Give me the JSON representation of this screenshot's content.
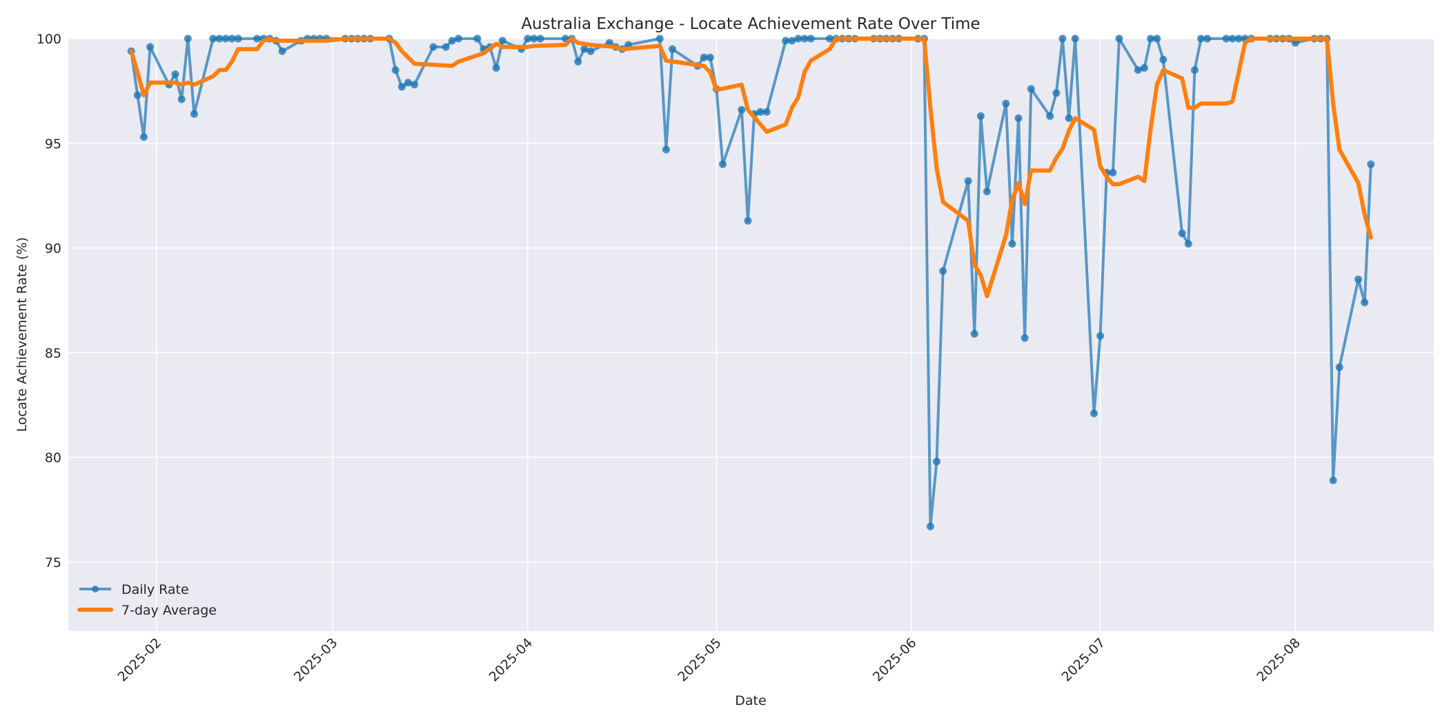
{
  "chart_data": {
    "type": "line",
    "title": "Australia Exchange - Locate Achievement Rate Over Time",
    "xlabel": "Date",
    "ylabel": "Locate Achievement Rate (%)",
    "xlim": [
      "2025-01-18",
      "2025-08-23"
    ],
    "ylim": [
      71.7,
      100
    ],
    "yticks": [
      75,
      80,
      85,
      90,
      95,
      100
    ],
    "xticks": [
      "2025-02",
      "2025-03",
      "2025-04",
      "2025-05",
      "2025-06",
      "2025-07",
      "2025-08"
    ],
    "grid": true,
    "legend_position": "lower left",
    "series": [
      {
        "name": "Daily Rate",
        "color": "#1f77b4",
        "style": "line-with-markers",
        "points": [
          [
            "2025-01-28",
            99.4
          ],
          [
            "2025-01-29",
            97.3
          ],
          [
            "2025-01-30",
            95.3
          ],
          [
            "2025-01-31",
            99.6
          ],
          [
            "2025-02-03",
            97.8
          ],
          [
            "2025-02-04",
            98.3
          ],
          [
            "2025-02-05",
            97.1
          ],
          [
            "2025-02-06",
            100.0
          ],
          [
            "2025-02-07",
            96.4
          ],
          [
            "2025-02-10",
            100.0
          ],
          [
            "2025-02-11",
            100.0
          ],
          [
            "2025-02-12",
            100.0
          ],
          [
            "2025-02-13",
            100.0
          ],
          [
            "2025-02-14",
            100.0
          ],
          [
            "2025-02-17",
            100.0
          ],
          [
            "2025-02-18",
            100.0
          ],
          [
            "2025-02-19",
            100.0
          ],
          [
            "2025-02-20",
            99.9
          ],
          [
            "2025-02-21",
            99.4
          ],
          [
            "2025-02-24",
            99.9
          ],
          [
            "2025-02-25",
            100.0
          ],
          [
            "2025-02-26",
            100.0
          ],
          [
            "2025-02-27",
            100.0
          ],
          [
            "2025-02-28",
            100.0
          ],
          [
            "2025-03-03",
            100.0
          ],
          [
            "2025-03-04",
            100.0
          ],
          [
            "2025-03-05",
            100.0
          ],
          [
            "2025-03-06",
            100.0
          ],
          [
            "2025-03-07",
            100.0
          ],
          [
            "2025-03-10",
            100.0
          ],
          [
            "2025-03-11",
            98.5
          ],
          [
            "2025-03-12",
            97.7
          ],
          [
            "2025-03-13",
            97.9
          ],
          [
            "2025-03-14",
            97.8
          ],
          [
            "2025-03-17",
            99.6
          ],
          [
            "2025-03-19",
            99.6
          ],
          [
            "2025-03-20",
            99.9
          ],
          [
            "2025-03-21",
            100.0
          ],
          [
            "2025-03-24",
            100.0
          ],
          [
            "2025-03-25",
            99.5
          ],
          [
            "2025-03-26",
            99.6
          ],
          [
            "2025-03-27",
            98.6
          ],
          [
            "2025-03-28",
            99.9
          ],
          [
            "2025-03-31",
            99.5
          ],
          [
            "2025-04-01",
            100.0
          ],
          [
            "2025-04-02",
            100.0
          ],
          [
            "2025-04-03",
            100.0
          ],
          [
            "2025-04-07",
            100.0
          ],
          [
            "2025-04-08",
            100.0
          ],
          [
            "2025-04-09",
            98.9
          ],
          [
            "2025-04-10",
            99.5
          ],
          [
            "2025-04-11",
            99.4
          ],
          [
            "2025-04-14",
            99.8
          ],
          [
            "2025-04-15",
            99.6
          ],
          [
            "2025-04-16",
            99.5
          ],
          [
            "2025-04-17",
            99.7
          ],
          [
            "2025-04-22",
            100.0
          ],
          [
            "2025-04-23",
            94.7
          ],
          [
            "2025-04-24",
            99.5
          ],
          [
            "2025-04-28",
            98.7
          ],
          [
            "2025-04-29",
            99.1
          ],
          [
            "2025-04-30",
            99.1
          ],
          [
            "2025-05-01",
            97.6
          ],
          [
            "2025-05-02",
            94.0
          ],
          [
            "2025-05-05",
            96.6
          ],
          [
            "2025-05-06",
            91.3
          ],
          [
            "2025-05-07",
            96.4
          ],
          [
            "2025-05-08",
            96.5
          ],
          [
            "2025-05-09",
            96.5
          ],
          [
            "2025-05-12",
            99.9
          ],
          [
            "2025-05-13",
            99.9
          ],
          [
            "2025-05-14",
            100.0
          ],
          [
            "2025-05-15",
            100.0
          ],
          [
            "2025-05-16",
            100.0
          ],
          [
            "2025-05-19",
            100.0
          ],
          [
            "2025-05-20",
            100.0
          ],
          [
            "2025-05-21",
            100.0
          ],
          [
            "2025-05-22",
            100.0
          ],
          [
            "2025-05-23",
            100.0
          ],
          [
            "2025-05-26",
            100.0
          ],
          [
            "2025-05-27",
            100.0
          ],
          [
            "2025-05-28",
            100.0
          ],
          [
            "2025-05-29",
            100.0
          ],
          [
            "2025-05-30",
            100.0
          ],
          [
            "2025-06-02",
            100.0
          ],
          [
            "2025-06-03",
            100.0
          ],
          [
            "2025-06-04",
            76.7
          ],
          [
            "2025-06-05",
            79.8
          ],
          [
            "2025-06-06",
            88.9
          ],
          [
            "2025-06-10",
            93.2
          ],
          [
            "2025-06-11",
            85.9
          ],
          [
            "2025-06-12",
            96.3
          ],
          [
            "2025-06-13",
            92.7
          ],
          [
            "2025-06-16",
            96.9
          ],
          [
            "2025-06-17",
            90.2
          ],
          [
            "2025-06-18",
            96.2
          ],
          [
            "2025-06-19",
            85.7
          ],
          [
            "2025-06-20",
            97.6
          ],
          [
            "2025-06-23",
            96.3
          ],
          [
            "2025-06-24",
            97.4
          ],
          [
            "2025-06-25",
            100.0
          ],
          [
            "2025-06-26",
            96.2
          ],
          [
            "2025-06-27",
            100.0
          ],
          [
            "2025-06-30",
            82.1
          ],
          [
            "2025-07-01",
            85.8
          ],
          [
            "2025-07-02",
            93.6
          ],
          [
            "2025-07-03",
            93.6
          ],
          [
            "2025-07-04",
            100.0
          ],
          [
            "2025-07-07",
            98.5
          ],
          [
            "2025-07-08",
            98.6
          ],
          [
            "2025-07-09",
            100.0
          ],
          [
            "2025-07-10",
            100.0
          ],
          [
            "2025-07-11",
            99.0
          ],
          [
            "2025-07-14",
            90.7
          ],
          [
            "2025-07-15",
            90.2
          ],
          [
            "2025-07-16",
            98.5
          ],
          [
            "2025-07-17",
            100.0
          ],
          [
            "2025-07-18",
            100.0
          ],
          [
            "2025-07-21",
            100.0
          ],
          [
            "2025-07-22",
            100.0
          ],
          [
            "2025-07-23",
            100.0
          ],
          [
            "2025-07-24",
            100.0
          ],
          [
            "2025-07-25",
            100.0
          ],
          [
            "2025-07-28",
            100.0
          ],
          [
            "2025-07-29",
            100.0
          ],
          [
            "2025-07-30",
            100.0
          ],
          [
            "2025-07-31",
            100.0
          ],
          [
            "2025-08-01",
            99.8
          ],
          [
            "2025-08-04",
            100.0
          ],
          [
            "2025-08-05",
            100.0
          ],
          [
            "2025-08-06",
            100.0
          ],
          [
            "2025-08-07",
            78.9
          ],
          [
            "2025-08-08",
            84.3
          ],
          [
            "2025-08-11",
            88.5
          ],
          [
            "2025-08-12",
            87.4
          ],
          [
            "2025-08-13",
            94.0
          ]
        ]
      },
      {
        "name": "7-day Average",
        "color": "#ff7f0e",
        "style": "thick-line",
        "points": [
          [
            "2025-01-28",
            99.4
          ],
          [
            "2025-01-29",
            98.4
          ],
          [
            "2025-01-30",
            97.3
          ],
          [
            "2025-01-31",
            97.9
          ],
          [
            "2025-02-03",
            97.9
          ],
          [
            "2025-02-04",
            97.9
          ],
          [
            "2025-02-05",
            97.8
          ],
          [
            "2025-02-06",
            97.9
          ],
          [
            "2025-02-07",
            97.8
          ],
          [
            "2025-02-10",
            98.2
          ],
          [
            "2025-02-11",
            98.5
          ],
          [
            "2025-02-12",
            98.5
          ],
          [
            "2025-02-13",
            98.9
          ],
          [
            "2025-02-14",
            99.5
          ],
          [
            "2025-02-17",
            99.5
          ],
          [
            "2025-02-18",
            99.9
          ],
          [
            "2025-02-19",
            100.0
          ],
          [
            "2025-02-20",
            99.9
          ],
          [
            "2025-02-21",
            99.9
          ],
          [
            "2025-02-24",
            99.9
          ],
          [
            "2025-02-25",
            99.9
          ],
          [
            "2025-02-28",
            99.9
          ],
          [
            "2025-03-03",
            100.0
          ],
          [
            "2025-03-07",
            100.0
          ],
          [
            "2025-03-10",
            100.0
          ],
          [
            "2025-03-11",
            99.8
          ],
          [
            "2025-03-12",
            99.4
          ],
          [
            "2025-03-14",
            98.8
          ],
          [
            "2025-03-20",
            98.7
          ],
          [
            "2025-03-21",
            98.9
          ],
          [
            "2025-03-25",
            99.3
          ],
          [
            "2025-03-27",
            99.75
          ],
          [
            "2025-03-28",
            99.6
          ],
          [
            "2025-04-01",
            99.6
          ],
          [
            "2025-04-02",
            99.65
          ],
          [
            "2025-04-07",
            99.7
          ],
          [
            "2025-04-08",
            100.0
          ],
          [
            "2025-04-09",
            99.8
          ],
          [
            "2025-04-11",
            99.7
          ],
          [
            "2025-04-15",
            99.6
          ],
          [
            "2025-04-16",
            99.5
          ],
          [
            "2025-04-22",
            99.65
          ],
          [
            "2025-04-23",
            98.95
          ],
          [
            "2025-04-29",
            98.7
          ],
          [
            "2025-04-30",
            98.4
          ],
          [
            "2025-05-01",
            97.55
          ],
          [
            "2025-05-05",
            97.8
          ],
          [
            "2025-05-06",
            96.6
          ],
          [
            "2025-05-09",
            95.55
          ],
          [
            "2025-05-12",
            95.9
          ],
          [
            "2025-05-13",
            96.7
          ],
          [
            "2025-05-14",
            97.2
          ],
          [
            "2025-05-15",
            98.4
          ],
          [
            "2025-05-16",
            98.95
          ],
          [
            "2025-05-19",
            99.5
          ],
          [
            "2025-05-20",
            100.0
          ],
          [
            "2025-06-03",
            100.0
          ],
          [
            "2025-06-04",
            96.7
          ],
          [
            "2025-06-05",
            93.8
          ],
          [
            "2025-06-06",
            92.2
          ],
          [
            "2025-06-10",
            91.3
          ],
          [
            "2025-06-11",
            89.2
          ],
          [
            "2025-06-12",
            88.7
          ],
          [
            "2025-06-13",
            87.7
          ],
          [
            "2025-06-16",
            90.6
          ],
          [
            "2025-06-17",
            92.3
          ],
          [
            "2025-06-18",
            93.1
          ],
          [
            "2025-06-19",
            92.1
          ],
          [
            "2025-06-20",
            93.7
          ],
          [
            "2025-06-23",
            93.7
          ],
          [
            "2025-06-24",
            94.3
          ],
          [
            "2025-06-25",
            94.75
          ],
          [
            "2025-06-26",
            95.6
          ],
          [
            "2025-06-27",
            96.2
          ],
          [
            "2025-06-30",
            95.65
          ],
          [
            "2025-07-01",
            93.9
          ],
          [
            "2025-07-02",
            93.4
          ],
          [
            "2025-07-03",
            93.05
          ],
          [
            "2025-07-04",
            93.05
          ],
          [
            "2025-07-07",
            93.4
          ],
          [
            "2025-07-08",
            93.2
          ],
          [
            "2025-07-09",
            95.7
          ],
          [
            "2025-07-10",
            97.8
          ],
          [
            "2025-07-11",
            98.5
          ],
          [
            "2025-07-14",
            98.1
          ],
          [
            "2025-07-15",
            96.7
          ],
          [
            "2025-07-16",
            96.7
          ],
          [
            "2025-07-17",
            96.9
          ],
          [
            "2025-07-21",
            96.9
          ],
          [
            "2025-07-22",
            97.0
          ],
          [
            "2025-07-24",
            99.8
          ],
          [
            "2025-07-25",
            100.0
          ],
          [
            "2025-08-06",
            100.0
          ],
          [
            "2025-08-07",
            96.9
          ],
          [
            "2025-08-08",
            94.7
          ],
          [
            "2025-08-11",
            93.1
          ],
          [
            "2025-08-12",
            91.6
          ],
          [
            "2025-08-13",
            90.5
          ]
        ]
      }
    ]
  },
  "legend": {
    "items": [
      {
        "label": "Daily Rate",
        "color": "#1f77b4"
      },
      {
        "label": "7-day Average",
        "color": "#ff7f0e"
      }
    ]
  },
  "style": {
    "plot_background": "#eaeaf2",
    "grid_color": "#ffffff",
    "daily_color": "#1f77b4",
    "average_color": "#ff7f0e"
  }
}
